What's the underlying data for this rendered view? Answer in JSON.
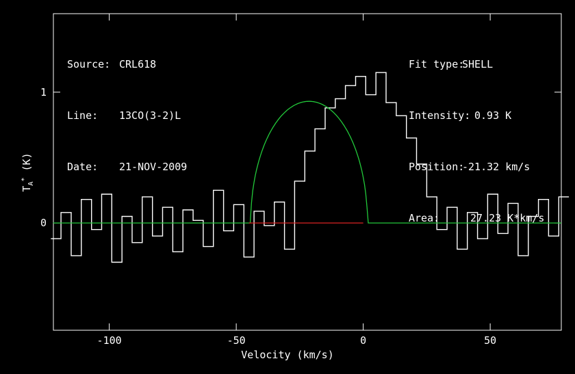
{
  "info": {
    "source_label": "Source:",
    "source": "CRL618",
    "line_label": "Line:",
    "line": "13CO(3-2)L",
    "date_label": "Date:",
    "date": "21-NOV-2009",
    "fit_label": "Fit type:",
    "fit": "SHELL",
    "intensity_label": "Intensity:",
    "intensity": "0.93 K",
    "position_label": "Position:",
    "position": "-21.32 km/s",
    "area_label": "Area:",
    "area": "27.23 K*km/s"
  },
  "chart_data": {
    "type": "line",
    "xlabel": "Velocity (km/s)",
    "ylabel": "T_A^* (K)",
    "xlim": [
      -122,
      78
    ],
    "ylim": [
      -0.82,
      1.6
    ],
    "xticks": [
      -100,
      -50,
      0,
      50
    ],
    "xtick_labels": [
      "-100",
      "-50",
      "0",
      "50"
    ],
    "yticks": [
      0,
      1
    ],
    "ytick_labels": [
      "0",
      "1"
    ],
    "grid": false,
    "series": [
      {
        "color": "#ffffff",
        "style": "histogram",
        "x_start": -121,
        "x_step": 4,
        "values": [
          -0.12,
          0.08,
          -0.25,
          0.18,
          -0.05,
          0.22,
          -0.3,
          0.05,
          -0.15,
          0.2,
          -0.1,
          0.12,
          -0.22,
          0.1,
          0.02,
          -0.18,
          0.25,
          -0.06,
          0.14,
          -0.26,
          0.09,
          -0.02,
          0.16,
          -0.2,
          0.32,
          0.55,
          0.72,
          0.88,
          0.95,
          1.05,
          1.12,
          0.98,
          1.15,
          0.92,
          0.82,
          0.65,
          0.45,
          0.2,
          -0.05,
          0.12,
          -0.2,
          0.08,
          -0.12,
          0.22,
          -0.08,
          0.15,
          -0.25,
          0.05,
          0.18,
          -0.1,
          0.2
        ]
      },
      {
        "color": "#22c93a",
        "style": "fit",
        "center": -21.32,
        "peak": 0.93,
        "half_width": 23
      },
      {
        "color": "#dd2222",
        "style": "baseline",
        "x_range": [
          -45,
          0
        ],
        "value": 0
      }
    ]
  }
}
